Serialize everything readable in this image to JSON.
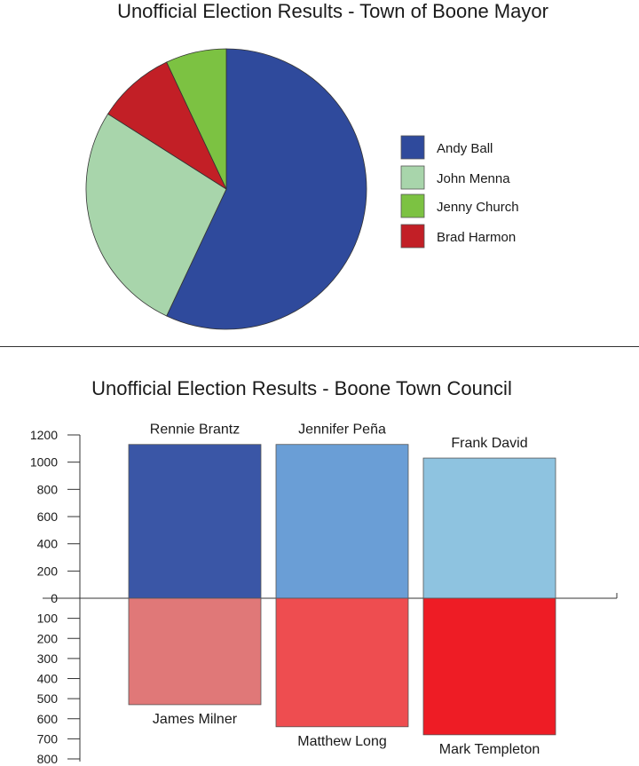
{
  "mayor": {
    "chart_data": {
      "type": "pie",
      "title": "Unofficial Election Results - Town of Boone Mayor",
      "slices": [
        {
          "name": "Andy Ball",
          "value": 57,
          "color": "#2f4a9c"
        },
        {
          "name": "John Menna",
          "value": 27,
          "color": "#a8d5ab"
        },
        {
          "name": "Brad Harmon",
          "value": 9,
          "color": "#c21f26"
        },
        {
          "name": "Jenny Church",
          "value": 7,
          "color": "#7cc242"
        }
      ],
      "legend": [
        {
          "name": "Andy Ball",
          "color": "#2f4a9c"
        },
        {
          "name": "John Menna",
          "color": "#a8d5ab"
        },
        {
          "name": "Jenny Church",
          "color": "#7cc242"
        },
        {
          "name": "Brad Harmon",
          "color": "#c21f26"
        }
      ],
      "legend_placement": "right"
    }
  },
  "council": {
    "chart_data": {
      "type": "bar",
      "title": "Unofficial Election Results - Boone Town Council",
      "xlabel": "",
      "ylabel": "",
      "positive_ylim": [
        0,
        1200
      ],
      "negative_ylim": [
        0,
        800
      ],
      "positive_ticks": [
        "1200",
        "1000",
        "800",
        "600",
        "400",
        "200",
        "0"
      ],
      "negative_ticks": [
        "100",
        "200",
        "300",
        "400",
        "500",
        "600",
        "700",
        "800"
      ],
      "winners": [
        {
          "name": "Rennie Brantz",
          "value": 1130,
          "color": "#3a56a6"
        },
        {
          "name": "Jennifer Peña",
          "value": 1130,
          "color": "#6a9ed6"
        },
        {
          "name": "Frank David",
          "value": 1030,
          "color": "#8ec3e0"
        }
      ],
      "losers": [
        {
          "name": "James Milner",
          "value": 530,
          "color": "#e07878"
        },
        {
          "name": "Matthew Long",
          "value": 640,
          "color": "#ee4d50"
        },
        {
          "name": "Mark Templeton",
          "value": 680,
          "color": "#ee1c25"
        }
      ]
    }
  }
}
